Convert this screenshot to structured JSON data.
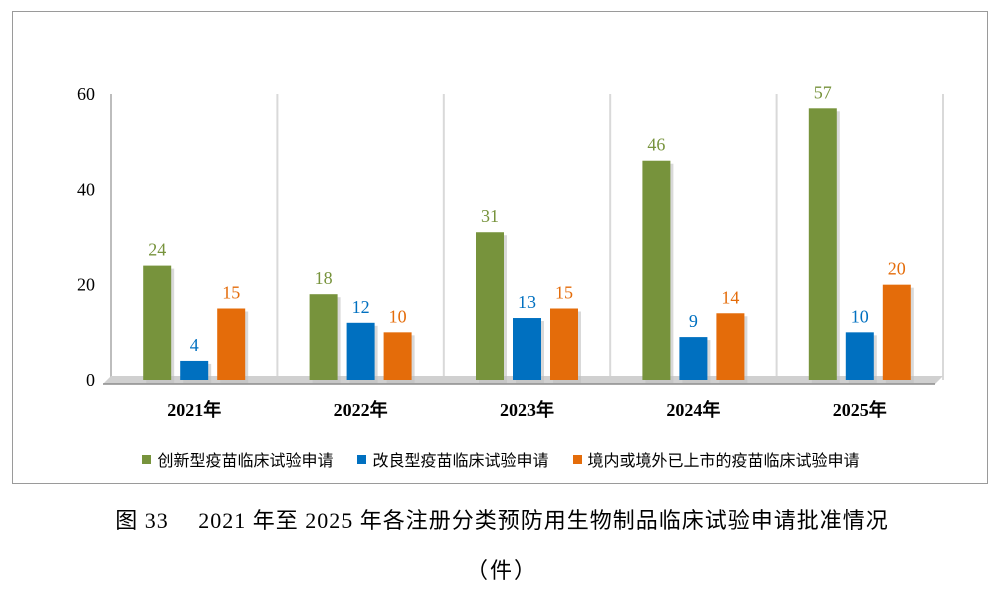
{
  "chart_data": {
    "type": "bar",
    "categories": [
      "2021年",
      "2022年",
      "2023年",
      "2024年",
      "2025年"
    ],
    "series": [
      {
        "name": "创新型疫苗临床试验申请",
        "values": [
          24,
          18,
          31,
          46,
          57
        ],
        "color": "#77933C"
      },
      {
        "name": "改良型疫苗临床试验申请",
        "values": [
          4,
          12,
          13,
          9,
          10
        ],
        "color": "#0070C0"
      },
      {
        "name": "境内或境外已上市的疫苗临床试验申请",
        "values": [
          15,
          10,
          15,
          14,
          20
        ],
        "color": "#E46C0A"
      }
    ],
    "yticks": [
      "0",
      "20",
      "40",
      "60"
    ],
    "ylim": [
      0,
      60
    ],
    "grid": false,
    "legend_position": "bottom"
  },
  "caption": {
    "title": "图 33　 2021 年至 2025 年各注册分类预防用生物制品临床试验申请批准情况",
    "unit": "（件）"
  }
}
